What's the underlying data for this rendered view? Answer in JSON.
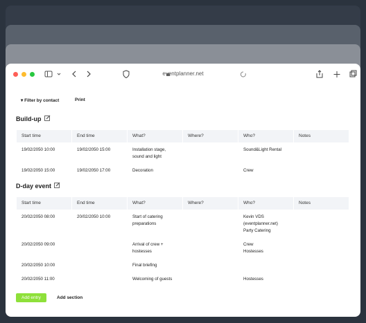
{
  "toolbar": {
    "url": "eventplanner.net"
  },
  "actions": {
    "filter": "Filter by contact",
    "print": "Print"
  },
  "columns": [
    "Start time",
    "End time",
    "What?",
    "Where?",
    "Who?",
    "Notes"
  ],
  "sections": [
    {
      "title": "Build-up",
      "rows": [
        [
          "19/02/2050 10:00",
          "19/02/2050 15:00",
          "Installation stage,\nsound and light",
          null,
          "Sound&Light Rental",
          null
        ],
        [
          "19/02/2050 15:00",
          "19/02/2050 17:00",
          "Decoration",
          null,
          "Crew",
          null
        ]
      ]
    },
    {
      "title": "D-day event",
      "rows": [
        [
          "20/02/2050 08:00",
          "20/02/2050 10:00",
          "Start of catering\npreparations",
          null,
          "Kevin VDS\n(eventplanner.net)\nParty Catering",
          null
        ],
        [
          "20/02/2050 09:00",
          null,
          "Arrival of crew +\nhostesses",
          null,
          "Crew\nHostesses",
          null
        ],
        [
          "20/02/2050 10:00",
          null,
          "Final briefing",
          null,
          null,
          null
        ],
        [
          "20/02/2050 11:00",
          null,
          "Welcoming of guests",
          null,
          "Hostesses",
          null
        ]
      ]
    }
  ],
  "buttons": {
    "add_entry": "Add entry",
    "add_section": "Add section"
  }
}
